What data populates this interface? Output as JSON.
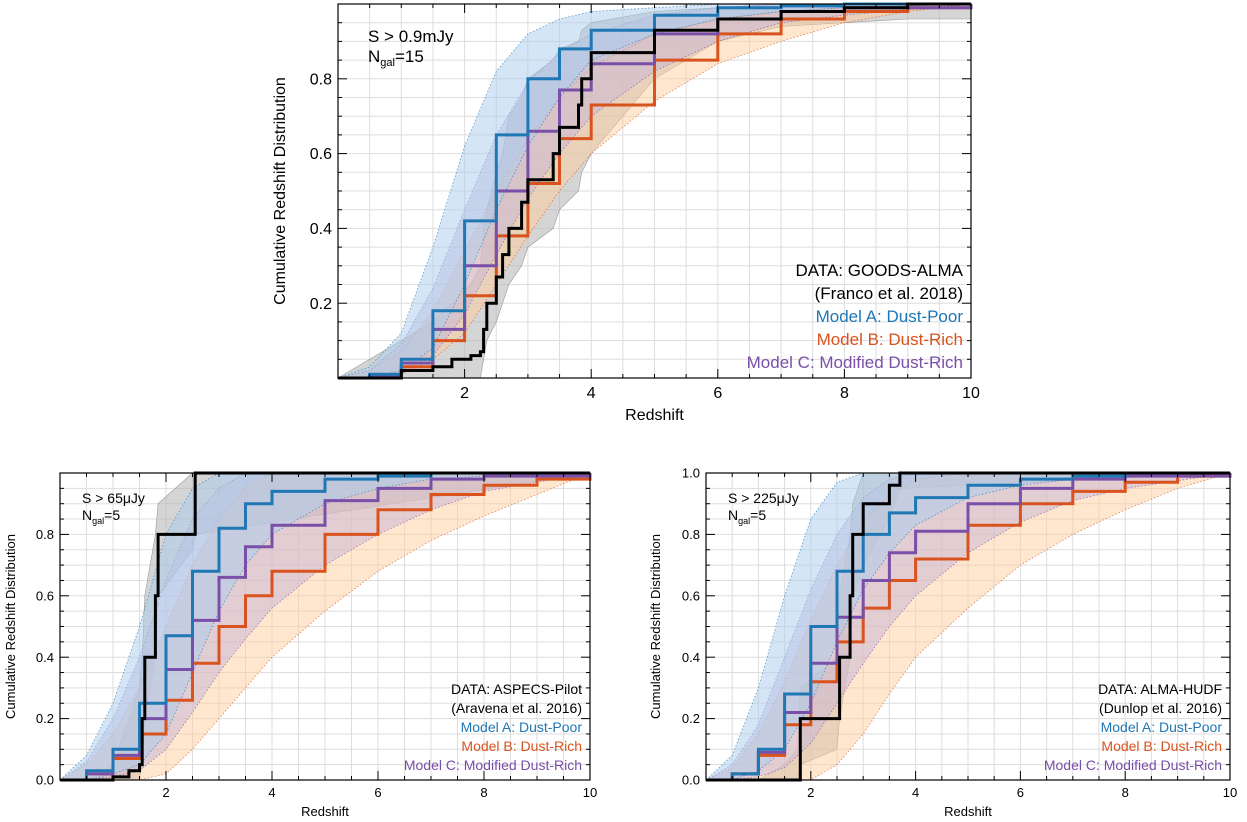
{
  "colors": {
    "data": "#000000",
    "data_band": "#b3b3b3",
    "model_a": "#1f77b4",
    "model_a_band": "#a9cdee",
    "model_b": "#d9531e",
    "model_b_band": "#fdcf9e",
    "model_c": "#7a4fa7",
    "model_c_band": "#c5b4d8",
    "grid": "#dddddd"
  },
  "chart_data": [
    {
      "type": "line",
      "panel": "top",
      "xlabel": "Redshift",
      "ylabel": "Cumulative Redshift Distribution",
      "xlim": [
        0,
        10
      ],
      "ylim": [
        0,
        1.0
      ],
      "xticks": [
        "2",
        "4",
        "6",
        "8",
        "10"
      ],
      "yticks": [
        "0.2",
        "0.4",
        "0.6",
        "0.8"
      ],
      "grid": true,
      "annotation": {
        "flux_label": "S > 0.9mJy",
        "ngal_main": "N",
        "ngal_sub": "gal",
        "ngal_value": "=15"
      },
      "legend_position": "lower-right",
      "legend": [
        {
          "text": "DATA: GOODS-ALMA",
          "color": "#000000"
        },
        {
          "text": "(Franco et al. 2018)",
          "color": "#000000"
        },
        {
          "text": "Model A: Dust-Poor",
          "color": "#1f77b4"
        },
        {
          "text": "Model B: Dust-Rich",
          "color": "#d9531e"
        },
        {
          "text": "Model C: Modified Dust-Rich",
          "color": "#7a4fa7"
        }
      ],
      "series": [
        {
          "key": "data",
          "x": [
            0,
            1.0,
            1.5,
            1.8,
            2.1,
            2.25,
            2.3,
            2.35,
            2.5,
            2.6,
            2.7,
            2.9,
            3.0,
            3.4,
            3.5,
            3.8,
            3.85,
            4.0,
            5.0,
            6.0,
            7.0,
            8.0,
            9.0,
            10.0
          ],
          "y": [
            0,
            0.02,
            0.03,
            0.05,
            0.06,
            0.07,
            0.13,
            0.2,
            0.27,
            0.33,
            0.4,
            0.47,
            0.53,
            0.6,
            0.67,
            0.73,
            0.8,
            0.87,
            0.93,
            0.96,
            0.98,
            0.99,
            1.0,
            1.0
          ]
        },
        {
          "key": "data_band",
          "upper": [
            0,
            0.1,
            0.15,
            0.2,
            0.25,
            0.3,
            0.4,
            0.45,
            0.55,
            0.6,
            0.7,
            0.75,
            0.8,
            0.85,
            0.88,
            0.9,
            0.93,
            0.95,
            0.98,
            0.99,
            1.0,
            1.0,
            1.0,
            1.0
          ],
          "lower": [
            0,
            0.0,
            0.0,
            0.0,
            0.0,
            0.0,
            0.05,
            0.1,
            0.15,
            0.2,
            0.25,
            0.3,
            0.35,
            0.4,
            0.45,
            0.5,
            0.55,
            0.6,
            0.8,
            0.9,
            0.94,
            0.95,
            0.96,
            0.96
          ]
        },
        {
          "key": "model_a",
          "x": [
            0,
            0.5,
            1.0,
            1.5,
            2.0,
            2.5,
            3.0,
            3.5,
            4.0,
            5.0,
            6.0,
            7.0,
            8.0,
            10.0
          ],
          "y": [
            0,
            0.01,
            0.05,
            0.18,
            0.42,
            0.65,
            0.8,
            0.88,
            0.93,
            0.97,
            0.99,
            0.995,
            1.0,
            1.0
          ],
          "upper": [
            0,
            0.03,
            0.12,
            0.35,
            0.62,
            0.82,
            0.92,
            0.96,
            0.98,
            0.99,
            1.0,
            1.0,
            1.0,
            1.0
          ],
          "lower": [
            0,
            0.0,
            0.02,
            0.08,
            0.25,
            0.45,
            0.62,
            0.75,
            0.85,
            0.92,
            0.96,
            0.98,
            0.99,
            1.0
          ]
        },
        {
          "key": "model_b",
          "x": [
            0,
            0.5,
            1.0,
            1.5,
            2.0,
            2.5,
            3.0,
            3.5,
            4.0,
            5.0,
            6.0,
            7.0,
            8.0,
            9.0,
            10.0
          ],
          "y": [
            0,
            0.005,
            0.03,
            0.1,
            0.22,
            0.38,
            0.52,
            0.64,
            0.73,
            0.85,
            0.92,
            0.96,
            0.98,
            0.99,
            1.0
          ],
          "upper": [
            0,
            0.02,
            0.07,
            0.18,
            0.34,
            0.5,
            0.64,
            0.75,
            0.83,
            0.92,
            0.96,
            0.98,
            0.99,
            1.0,
            1.0
          ],
          "lower": [
            0,
            0.0,
            0.01,
            0.05,
            0.12,
            0.25,
            0.38,
            0.5,
            0.6,
            0.74,
            0.84,
            0.9,
            0.95,
            0.98,
            1.0
          ]
        },
        {
          "key": "model_c",
          "x": [
            0,
            0.5,
            1.0,
            1.5,
            2.0,
            2.5,
            3.0,
            3.5,
            4.0,
            5.0,
            6.0,
            7.0,
            8.0,
            10.0
          ],
          "y": [
            0,
            0.005,
            0.04,
            0.13,
            0.3,
            0.5,
            0.66,
            0.77,
            0.84,
            0.92,
            0.96,
            0.98,
            0.99,
            1.0
          ],
          "upper": [
            0,
            0.02,
            0.09,
            0.24,
            0.45,
            0.65,
            0.79,
            0.87,
            0.92,
            0.97,
            0.99,
            1.0,
            1.0,
            1.0
          ],
          "lower": [
            0,
            0.0,
            0.01,
            0.06,
            0.17,
            0.33,
            0.48,
            0.6,
            0.7,
            0.82,
            0.9,
            0.95,
            0.97,
            1.0
          ]
        }
      ]
    },
    {
      "type": "line",
      "panel": "bottom-left",
      "xlabel": "Redshift",
      "ylabel": "Cumulative Redshift Distribution",
      "xlim": [
        0,
        10
      ],
      "ylim": [
        0,
        1.0
      ],
      "xticks": [
        "2",
        "4",
        "6",
        "8",
        "10"
      ],
      "yticks": [
        "0.0",
        "0.2",
        "0.4",
        "0.6",
        "0.8"
      ],
      "grid": true,
      "annotation": {
        "flux_label": "S > 65μJy",
        "ngal_main": "N",
        "ngal_sub": "gal",
        "ngal_value": "=5"
      },
      "legend_position": "lower-right",
      "legend": [
        {
          "text": "DATA: ASPECS-Pilot",
          "color": "#000000"
        },
        {
          "text": "(Aravena et al. 2016)",
          "color": "#000000"
        },
        {
          "text": "Model A: Dust-Poor",
          "color": "#1f77b4"
        },
        {
          "text": "Model B: Dust-Rich",
          "color": "#d9531e"
        },
        {
          "text": "Model C: Modified Dust-Rich",
          "color": "#7a4fa7"
        }
      ],
      "series": [
        {
          "key": "data",
          "x": [
            0,
            0.5,
            1.0,
            1.3,
            1.5,
            1.55,
            1.6,
            1.8,
            1.85,
            2.5,
            2.55,
            10.0
          ],
          "y": [
            0,
            0.0,
            0.01,
            0.03,
            0.05,
            0.2,
            0.4,
            0.6,
            0.8,
            0.8,
            1.0,
            1.0
          ]
        },
        {
          "key": "data_band",
          "upper": [
            0,
            0.0,
            0.05,
            0.2,
            0.3,
            0.4,
            0.6,
            0.8,
            0.9,
            1.0,
            1.0,
            1.0
          ],
          "lower": [
            0,
            0.0,
            0.0,
            0.0,
            0.0,
            0.05,
            0.2,
            0.4,
            0.6,
            0.75,
            0.8,
            1.0
          ]
        },
        {
          "key": "model_a",
          "x": [
            0,
            0.5,
            1.0,
            1.5,
            2.0,
            2.5,
            3.0,
            3.5,
            4.0,
            5.0,
            6.0,
            7.0,
            8.0,
            10.0
          ],
          "y": [
            0,
            0.03,
            0.1,
            0.25,
            0.47,
            0.68,
            0.82,
            0.9,
            0.94,
            0.98,
            0.99,
            1.0,
            1.0,
            1.0
          ],
          "upper": [
            0,
            0.08,
            0.25,
            0.5,
            0.8,
            0.95,
            1.0,
            1.0,
            1.0,
            1.0,
            1.0,
            1.0,
            1.0,
            1.0
          ],
          "lower": [
            0,
            0.0,
            0.02,
            0.05,
            0.15,
            0.35,
            0.55,
            0.7,
            0.8,
            0.9,
            0.95,
            0.98,
            0.99,
            1.0
          ]
        },
        {
          "key": "model_b",
          "x": [
            0,
            0.5,
            1.0,
            1.5,
            2.0,
            2.5,
            3.0,
            3.5,
            4.0,
            5.0,
            6.0,
            7.0,
            8.0,
            9.0,
            10.0
          ],
          "y": [
            0,
            0.02,
            0.07,
            0.15,
            0.26,
            0.38,
            0.5,
            0.6,
            0.68,
            0.8,
            0.88,
            0.93,
            0.96,
            0.98,
            1.0
          ],
          "upper": [
            0,
            0.05,
            0.15,
            0.3,
            0.5,
            0.7,
            0.85,
            0.95,
            1.0,
            1.0,
            1.0,
            1.0,
            1.0,
            1.0,
            1.0
          ],
          "lower": [
            0,
            0.0,
            0.0,
            0.0,
            0.02,
            0.1,
            0.2,
            0.3,
            0.4,
            0.55,
            0.68,
            0.78,
            0.86,
            0.93,
            1.0
          ]
        },
        {
          "key": "model_c",
          "x": [
            0,
            0.5,
            1.0,
            1.5,
            2.0,
            2.5,
            3.0,
            3.5,
            4.0,
            5.0,
            6.0,
            7.0,
            8.0,
            10.0
          ],
          "y": [
            0,
            0.02,
            0.08,
            0.2,
            0.36,
            0.52,
            0.66,
            0.76,
            0.83,
            0.91,
            0.95,
            0.98,
            0.99,
            1.0
          ],
          "upper": [
            0,
            0.06,
            0.2,
            0.4,
            0.65,
            0.85,
            0.95,
            1.0,
            1.0,
            1.0,
            1.0,
            1.0,
            1.0,
            1.0
          ],
          "lower": [
            0,
            0.0,
            0.01,
            0.03,
            0.1,
            0.22,
            0.35,
            0.46,
            0.56,
            0.7,
            0.8,
            0.88,
            0.94,
            1.0
          ]
        }
      ]
    },
    {
      "type": "line",
      "panel": "bottom-right",
      "xlabel": "Redshift",
      "ylabel": "Cumulative Redshift Distribution",
      "xlim": [
        0,
        10
      ],
      "ylim": [
        0,
        1.0
      ],
      "xticks": [
        "2",
        "4",
        "6",
        "8",
        "10"
      ],
      "yticks": [
        "0.0",
        "0.2",
        "0.4",
        "0.6",
        "0.8",
        "1.0"
      ],
      "grid": true,
      "annotation": {
        "flux_label": "S > 225μJy",
        "ngal_main": "N",
        "ngal_sub": "gal",
        "ngal_value": "=5"
      },
      "legend_position": "lower-right",
      "legend": [
        {
          "text": "DATA: ALMA-HUDF",
          "color": "#000000"
        },
        {
          "text": "(Dunlop et al. 2016)",
          "color": "#000000"
        },
        {
          "text": "Model A: Dust-Poor",
          "color": "#1f77b4"
        },
        {
          "text": "Model B: Dust-Rich",
          "color": "#d9531e"
        },
        {
          "text": "Model C: Modified Dust-Rich",
          "color": "#7a4fa7"
        }
      ],
      "series": [
        {
          "key": "data",
          "x": [
            0,
            0.5,
            1.0,
            1.5,
            1.75,
            1.8,
            2.5,
            2.55,
            2.75,
            2.8,
            3.0,
            3.5,
            3.7,
            10.0
          ],
          "y": [
            0,
            0.0,
            0.0,
            0.0,
            0.0,
            0.2,
            0.2,
            0.4,
            0.6,
            0.8,
            0.9,
            0.96,
            1.0,
            1.0
          ]
        },
        {
          "key": "data_band",
          "upper": [
            0,
            0.0,
            0.0,
            0.05,
            0.1,
            0.3,
            0.4,
            0.6,
            0.8,
            0.9,
            1.0,
            1.0,
            1.0,
            1.0
          ],
          "lower": [
            0,
            0.0,
            0.0,
            0.0,
            0.0,
            0.05,
            0.1,
            0.2,
            0.4,
            0.6,
            0.7,
            0.85,
            0.95,
            1.0
          ]
        },
        {
          "key": "model_a",
          "x": [
            0,
            0.5,
            1.0,
            1.5,
            2.0,
            2.5,
            3.0,
            3.5,
            4.0,
            5.0,
            6.0,
            7.0,
            8.0,
            10.0
          ],
          "y": [
            0,
            0.02,
            0.1,
            0.28,
            0.5,
            0.68,
            0.8,
            0.87,
            0.92,
            0.96,
            0.98,
            0.99,
            1.0,
            1.0
          ],
          "upper": [
            0,
            0.08,
            0.3,
            0.6,
            0.85,
            0.97,
            1.0,
            1.0,
            1.0,
            1.0,
            1.0,
            1.0,
            1.0,
            1.0
          ],
          "lower": [
            0,
            0.0,
            0.03,
            0.1,
            0.25,
            0.45,
            0.62,
            0.74,
            0.83,
            0.92,
            0.96,
            0.98,
            0.99,
            1.0
          ]
        },
        {
          "key": "model_b",
          "x": [
            0,
            0.5,
            1.0,
            1.5,
            2.0,
            2.5,
            3.0,
            3.5,
            4.0,
            5.0,
            6.0,
            7.0,
            8.0,
            9.0,
            10.0
          ],
          "y": [
            0,
            0.02,
            0.08,
            0.18,
            0.32,
            0.45,
            0.56,
            0.65,
            0.72,
            0.83,
            0.9,
            0.94,
            0.97,
            0.99,
            1.0
          ],
          "upper": [
            0,
            0.04,
            0.15,
            0.32,
            0.52,
            0.7,
            0.84,
            0.93,
            0.98,
            1.0,
            1.0,
            1.0,
            1.0,
            1.0,
            1.0
          ],
          "lower": [
            0,
            0.0,
            0.0,
            0.0,
            0.0,
            0.05,
            0.15,
            0.28,
            0.4,
            0.56,
            0.7,
            0.8,
            0.88,
            0.95,
            1.0
          ]
        },
        {
          "key": "model_c",
          "x": [
            0,
            0.5,
            1.0,
            1.5,
            2.0,
            2.5,
            3.0,
            3.5,
            4.0,
            5.0,
            6.0,
            7.0,
            8.0,
            10.0
          ],
          "y": [
            0,
            0.02,
            0.09,
            0.22,
            0.38,
            0.53,
            0.65,
            0.74,
            0.81,
            0.9,
            0.95,
            0.98,
            0.99,
            1.0
          ],
          "upper": [
            0,
            0.05,
            0.18,
            0.4,
            0.62,
            0.8,
            0.92,
            0.98,
            1.0,
            1.0,
            1.0,
            1.0,
            1.0,
            1.0
          ],
          "lower": [
            0,
            0.0,
            0.01,
            0.04,
            0.12,
            0.25,
            0.38,
            0.5,
            0.6,
            0.74,
            0.84,
            0.91,
            0.95,
            1.0
          ]
        }
      ]
    }
  ]
}
